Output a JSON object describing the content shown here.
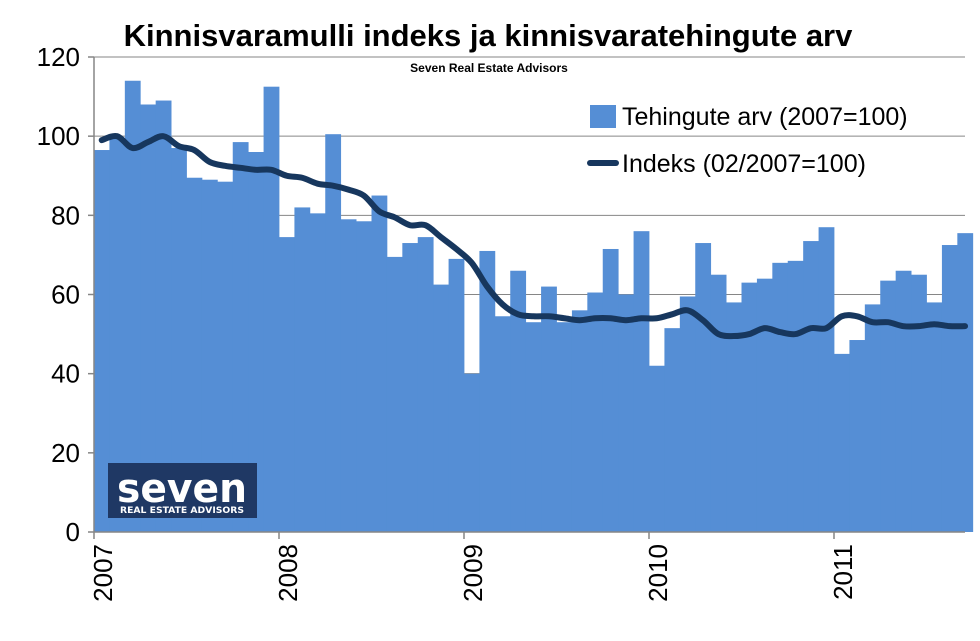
{
  "chart_data": {
    "type": "bar",
    "title": "Kinnisvaramulli indeks ja kinnisvaratehingute arv",
    "subtitle": "Seven Real Estate Advisors",
    "xlabel": "",
    "ylabel": "",
    "ylim": [
      0,
      120
    ],
    "y_ticks": [
      "0",
      "20",
      "40",
      "60",
      "80",
      "100",
      "120"
    ],
    "x_tick_labels": [
      "2007",
      "2008",
      "2009",
      "2010",
      "2011"
    ],
    "x_start": "2007-01",
    "grid": "horizontal",
    "legend_position": "top-right",
    "series": [
      {
        "name": "Tehingute arv (2007=100)",
        "kind": "bar",
        "color": "#558ED5",
        "values": [
          96.5,
          99.5,
          114,
          108,
          109,
          97,
          89.5,
          89,
          88.5,
          98.5,
          96,
          112.5,
          74.5,
          82,
          80.5,
          100.5,
          79,
          78.5,
          85,
          69.5,
          73,
          74.5,
          62.5,
          69,
          40,
          71,
          54.5,
          66,
          53,
          62,
          53,
          56,
          60.5,
          71.5,
          60,
          76,
          42,
          51.5,
          59.5,
          73,
          65,
          58,
          63,
          64,
          68,
          68.5,
          73.5,
          77,
          45,
          48.5,
          57.5,
          63.5,
          66,
          65,
          58,
          72.5,
          75.5
        ]
      },
      {
        "name": "Indeks (02/2007=100)",
        "kind": "line",
        "color": "#17375E",
        "values": [
          99,
          100,
          97,
          98.5,
          100,
          97.5,
          96.5,
          93.5,
          92.5,
          92,
          91.5,
          91.5,
          90,
          89.5,
          88,
          87.5,
          86.5,
          85,
          81,
          79.5,
          77.5,
          77.5,
          74.5,
          71.5,
          68,
          62,
          57.5,
          55,
          54.5,
          54.5,
          54,
          53.5,
          54,
          54,
          53.5,
          54,
          54,
          55,
          56,
          53.5,
          50,
          49.5,
          50,
          51.5,
          50.5,
          50,
          51.5,
          51.5,
          54.5,
          54.5,
          53,
          53,
          52,
          52,
          52.5,
          52,
          52
        ]
      }
    ]
  },
  "logo": {
    "name": "SEVEN",
    "wordmark": "seven",
    "tagline": "REAL ESTATE ADVISORS",
    "bg_color": "#1F3864"
  }
}
